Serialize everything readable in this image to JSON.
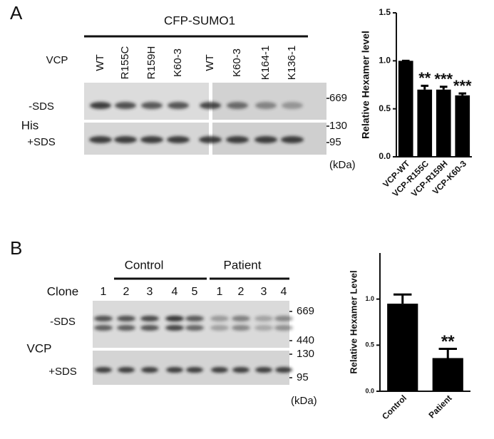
{
  "panels": [
    {
      "label": "A",
      "construct": "CFP-SUMO1",
      "row_label": "VCP",
      "lanes": [
        "WT",
        "R155C",
        "R159H",
        "K60-3",
        "WT",
        "K60-3",
        "K164-1",
        "K136-1"
      ],
      "conditions": [
        "-SDS",
        "+SDS"
      ],
      "antibody": "His",
      "markers": [
        "669",
        "130",
        "95"
      ],
      "unit": "(kDa)"
    },
    {
      "label": "B",
      "groups": [
        "Control",
        "Patient"
      ],
      "row_label": "Clone",
      "lanes": [
        "1",
        "2",
        "3",
        "4",
        "5",
        "1",
        "2",
        "3",
        "4"
      ],
      "conditions": [
        "-SDS",
        "+SDS"
      ],
      "antibody": "VCP",
      "markers": [
        "669",
        "440",
        "130",
        "95"
      ],
      "unit": "(kDa)"
    }
  ],
  "chart_data": [
    {
      "type": "bar",
      "ylabel": "Relative Hexamer level",
      "categories": [
        "VCP-WT",
        "VCP-R155C",
        "VCP-R159H",
        "VCP-K60-3"
      ],
      "values": [
        1.0,
        0.7,
        0.7,
        0.64
      ],
      "errors": [
        0,
        0.04,
        0.03,
        0.02
      ],
      "annotations": [
        null,
        "**",
        "***",
        "***"
      ],
      "color": "#000000",
      "ylim": [
        0,
        1.5
      ],
      "yticks": [
        {
          "value": 0,
          "label": "0.0"
        },
        0.5,
        {
          "value": 1,
          "label": "1.0"
        },
        1.5
      ]
    },
    {
      "type": "bar",
      "ylabel": "Relative Hexamer Level",
      "categories": [
        "Control",
        "Patient"
      ],
      "values": [
        0.95,
        0.36
      ],
      "errors": [
        0.1,
        0.1
      ],
      "annotations": [
        null,
        "**"
      ],
      "color": "#000000",
      "ylim": [
        0,
        1.5
      ],
      "yticks": [
        {
          "value": 0,
          "label": "0.0"
        },
        0.5,
        {
          "value": 1,
          "label": "1.0"
        }
      ]
    }
  ]
}
